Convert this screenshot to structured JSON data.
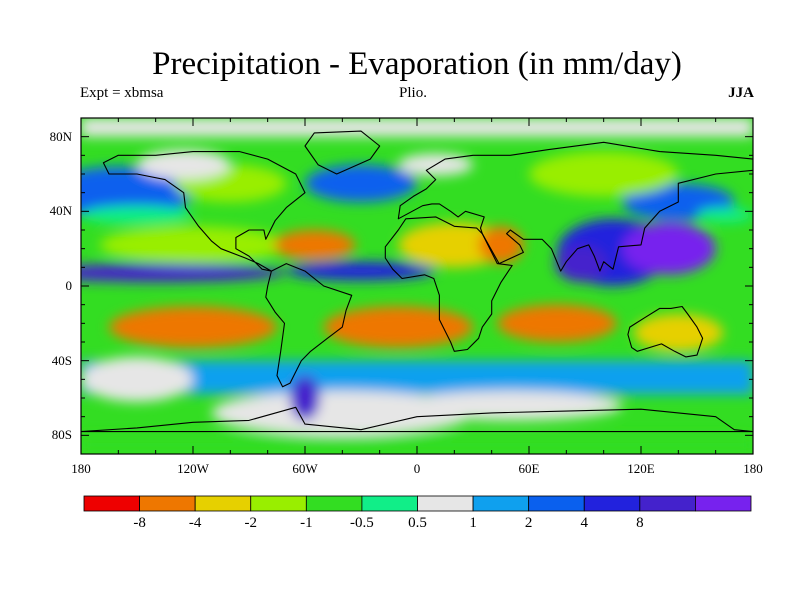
{
  "title": "Precipitation - Evaporation (in mm/day)",
  "subtitle_left": "Expt = xbmsa",
  "subtitle_center": "Plio.",
  "subtitle_right": "JJA",
  "map": {
    "projection": "cylindrical-equidistant",
    "lon_range": [
      -180,
      180
    ],
    "lat_range": [
      -90,
      90
    ],
    "coastlines": true
  },
  "y_ticks": [
    {
      "lat": 80,
      "label": "80N"
    },
    {
      "lat": 40,
      "label": "40N"
    },
    {
      "lat": 0,
      "label": "0"
    },
    {
      "lat": -40,
      "label": "40S"
    },
    {
      "lat": -80,
      "label": "80S"
    }
  ],
  "x_ticks": [
    {
      "lon": -180,
      "label": "180"
    },
    {
      "lon": -120,
      "label": "120W"
    },
    {
      "lon": -60,
      "label": "60W"
    },
    {
      "lon": 0,
      "label": "0"
    },
    {
      "lon": 60,
      "label": "60E"
    },
    {
      "lon": 120,
      "label": "120E"
    },
    {
      "lon": 180,
      "label": "180"
    }
  ],
  "colorbar": {
    "colors": [
      "#ee0000",
      "#ee7700",
      "#e6d000",
      "#99ee00",
      "#33dd22",
      "#11ee88",
      "#e6e6e6",
      "#0fa0ee",
      "#0a60ee",
      "#2222dd",
      "#4422cc",
      "#7722ee"
    ],
    "labels": [
      "-8",
      "-4",
      "-2",
      "-1",
      "-0.5",
      "0.5",
      "1",
      "2",
      "4",
      "8"
    ]
  }
}
